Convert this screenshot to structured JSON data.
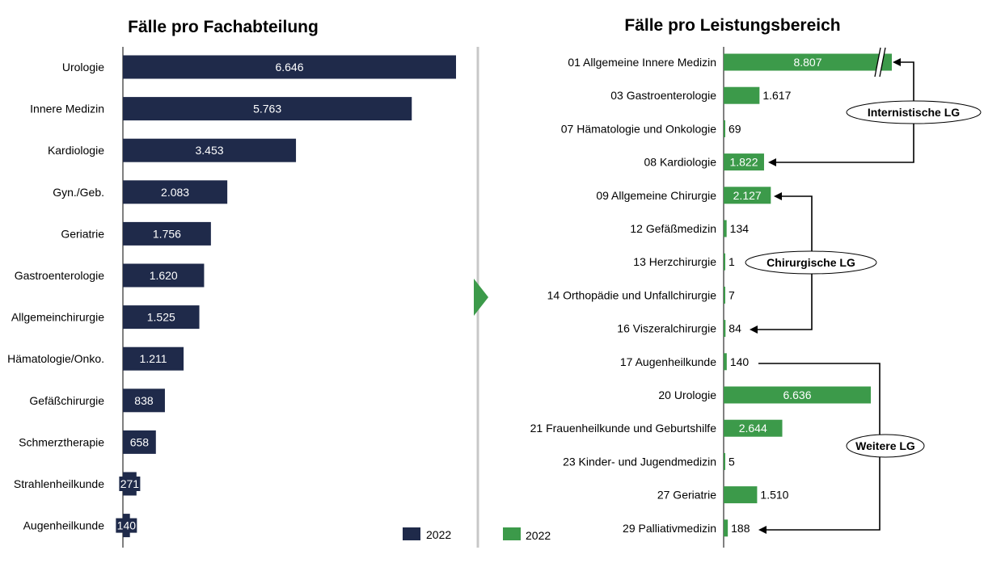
{
  "colors": {
    "navy": "#1f2a4a",
    "green": "#3c9a4a",
    "divider": "#c8c8c8"
  },
  "chart_data": [
    {
      "type": "bar",
      "orientation": "horizontal",
      "title": "Fälle pro Fachabteilung",
      "categories": [
        "Urologie",
        "Innere Medizin",
        "Kardiologie",
        "Gyn./Geb.",
        "Geriatrie",
        "Gastroenterologie",
        "Allgemeinchirurgie",
        "Hämatologie/Onko.",
        "Gefäßchirurgie",
        "Schmerztherapie",
        "Strahlenheilkunde",
        "Augenheilkunde"
      ],
      "series": [
        {
          "name": "2022",
          "values": [
            6646,
            5763,
            3453,
            2083,
            1756,
            1620,
            1525,
            1211,
            838,
            658,
            271,
            140
          ],
          "labels": [
            "6.646",
            "5.763",
            "3.453",
            "2.083",
            "1.756",
            "1.620",
            "1.525",
            "1.211",
            "838",
            "658",
            "271",
            "140"
          ]
        }
      ],
      "legend": "bottom-right"
    },
    {
      "type": "bar",
      "orientation": "horizontal",
      "title": "Fälle pro Leistungsbereich",
      "categories": [
        "01 Allgemeine Innere Medizin",
        "03 Gastroenterologie",
        "07 Hämatologie und Onkologie",
        "08 Kardiologie",
        "09 Allgemeine Chirurgie",
        "12 Gefäßmedizin",
        "13 Herzchirurgie",
        "14 Orthopädie und Unfallchirurgie",
        "16 Viszeralchirurgie",
        "17 Augenheilkunde",
        "20 Urologie",
        "21 Frauenheilkunde und Geburtshilfe",
        "23 Kinder- und Jugendmedizin",
        "27 Geriatrie",
        "29 Palliativmedizin"
      ],
      "series": [
        {
          "name": "2022",
          "values": [
            8807,
            1617,
            69,
            1822,
            2127,
            134,
            1,
            7,
            84,
            140,
            6636,
            2644,
            5,
            1510,
            188
          ],
          "labels": [
            "8.807",
            "1.617",
            "69",
            "1.822",
            "2.127",
            "134",
            "1",
            "7",
            "84",
            "140",
            "6.636",
            "2.644",
            "5",
            "1.510",
            "188"
          ]
        }
      ],
      "axis_break": "01 Allgemeine Innere Medizin",
      "groups": [
        {
          "label": "Internistische LG",
          "from": "08 Kardiologie",
          "to": "01 Allgemeine Innere Medizin"
        },
        {
          "label": "Chirurgische LG",
          "from": "09 Allgemeine Chirurgie",
          "to": "16 Viszeralchirurgie"
        },
        {
          "label": "Weitere LG",
          "from": "17 Augenheilkunde",
          "to": "29 Palliativmedizin"
        }
      ],
      "legend": "bottom-left"
    }
  ]
}
